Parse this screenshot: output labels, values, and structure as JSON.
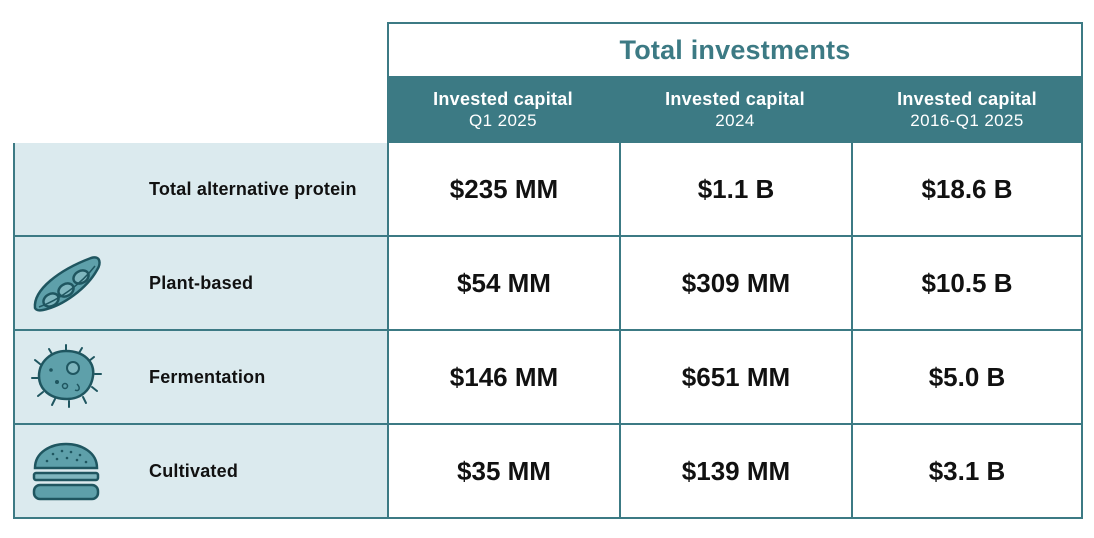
{
  "table": {
    "title": "Total investments",
    "columns": [
      {
        "line1": "Invested capital",
        "line2": "Q1 2025"
      },
      {
        "line1": "Invested capital",
        "line2": "2024"
      },
      {
        "line1": "Invested capital",
        "line2": "2016-Q1 2025"
      }
    ],
    "rows": [
      {
        "label": "Total alternative protein",
        "icon": "none",
        "values": [
          "$235 MM",
          "$1.1 B",
          "$18.6 B"
        ]
      },
      {
        "label": "Plant-based",
        "icon": "pea-pod-icon",
        "values": [
          "$54 MM",
          "$309 MM",
          "$10.5 B"
        ]
      },
      {
        "label": "Fermentation",
        "icon": "microbe-icon",
        "values": [
          "$146 MM",
          "$651 MM",
          "$5.0 B"
        ]
      },
      {
        "label": "Cultivated",
        "icon": "burger-icon",
        "values": [
          "$35 MM",
          "$139 MM",
          "$3.1 B"
        ]
      }
    ]
  },
  "colors": {
    "accent": "#3c7a84",
    "label_bg": "#dbeaee",
    "icon_fill": "#5ea0aa",
    "icon_stroke": "#1f5660"
  }
}
